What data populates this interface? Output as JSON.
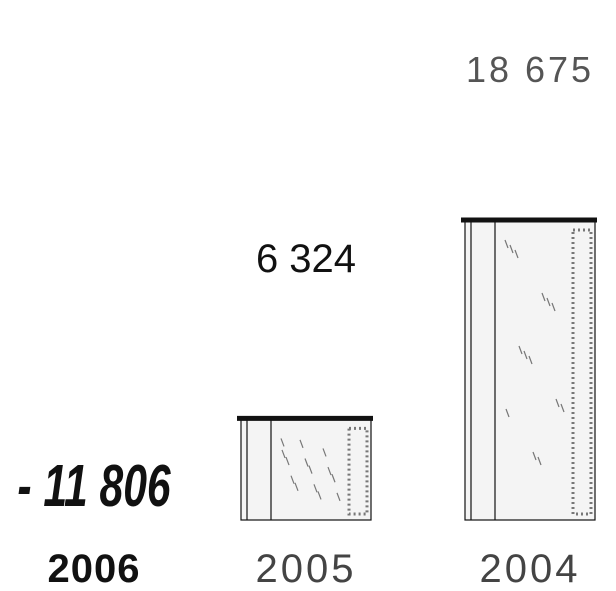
{
  "chart_data": {
    "type": "bar",
    "categories": [
      "2006",
      "2005",
      "2004"
    ],
    "values": [
      -11806,
      6324,
      18675
    ],
    "value_labels": [
      "- 11 806",
      "6 324",
      "18 675"
    ],
    "title": "",
    "xlabel": "",
    "ylabel": "",
    "grid": false,
    "legend": "none"
  },
  "colors": {
    "ink": "#111111",
    "bar_fill": "#f4f4f4",
    "bar_texture": "#777777"
  }
}
